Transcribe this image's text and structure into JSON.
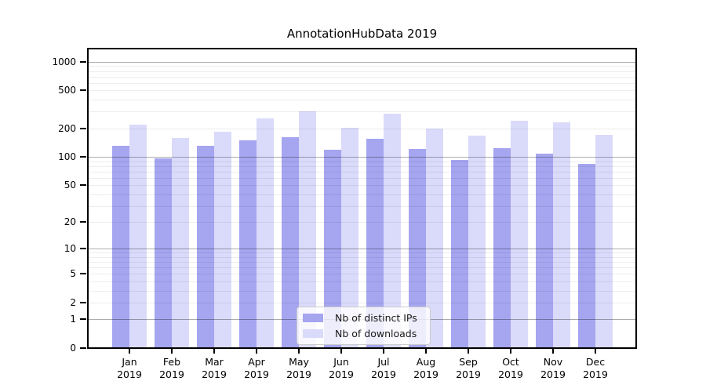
{
  "chart_data": {
    "type": "bar",
    "title": "AnnotationHubData 2019",
    "categories": [
      "Jan",
      "Feb",
      "Mar",
      "Apr",
      "May",
      "Jun",
      "Jul",
      "Aug",
      "Sep",
      "Oct",
      "Nov",
      "Dec"
    ],
    "category_year": "2019",
    "series": [
      {
        "name": "Nb of distinct IPs",
        "color": "#a5a5f0",
        "values": [
          130,
          97,
          130,
          150,
          160,
          120,
          156,
          122,
          92,
          124,
          109,
          85
        ]
      },
      {
        "name": "Nb of downloads",
        "color": "#dadafa",
        "values": [
          219,
          157,
          184,
          257,
          300,
          204,
          288,
          200,
          169,
          243,
          231,
          172
        ]
      }
    ],
    "yscale": "log10(value+1)",
    "ytick_labels": [
      1000,
      500,
      200,
      100,
      50,
      20,
      10,
      5,
      2,
      1,
      0
    ],
    "ylim": [
      0,
      1380
    ],
    "grid": true,
    "legend": {
      "position": "bottom-center",
      "entries": [
        "Nb of distinct IPs",
        "Nb of downloads"
      ]
    }
  }
}
